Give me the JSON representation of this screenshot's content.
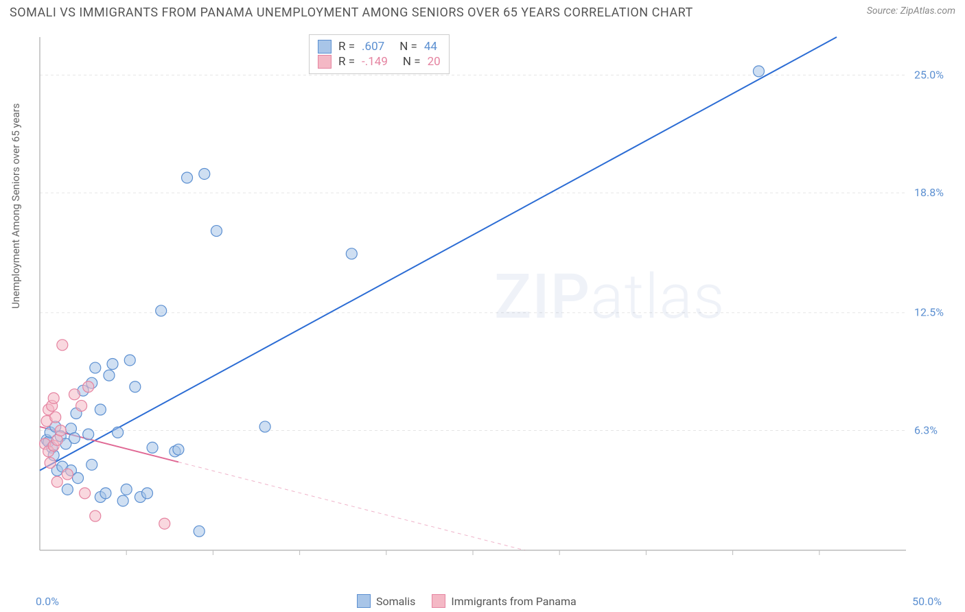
{
  "title": "SOMALI VS IMMIGRANTS FROM PANAMA UNEMPLOYMENT AMONG SENIORS OVER 65 YEARS CORRELATION CHART",
  "source": "Source: ZipAtlas.com",
  "watermark_a": "ZIP",
  "watermark_b": "atlas",
  "y_axis_label": "Unemployment Among Seniors over 65 years",
  "chart": {
    "type": "scatter",
    "xlim": [
      0,
      50
    ],
    "ylim": [
      0,
      27
    ],
    "y_ticks": [
      6.3,
      12.5,
      18.8,
      25.0
    ],
    "y_tick_labels": [
      "6.3%",
      "12.5%",
      "18.8%",
      "25.0%"
    ],
    "x_ticks": [
      5,
      10,
      15,
      20,
      25,
      30,
      35,
      40,
      45
    ],
    "x_origin_label": "0.0%",
    "x_end_label": "50.0%",
    "grid_color": "#e5e5e5",
    "axis_color": "#bbbbbb",
    "background_color": "#ffffff",
    "marker_radius": 8,
    "marker_opacity": 0.55,
    "line_width": 2,
    "series": [
      {
        "name": "Somalis",
        "color_fill": "#a8c5e8",
        "color_stroke": "#5b8fd1",
        "line_color": "#2b6cd4",
        "r": 0.607,
        "n": 44,
        "regression": {
          "x1": 0,
          "y1": 4.2,
          "x2": 46,
          "y2": 27,
          "dashed": false
        },
        "points": [
          [
            0.4,
            5.8
          ],
          [
            0.5,
            5.7
          ],
          [
            0.6,
            6.2
          ],
          [
            0.7,
            5.4
          ],
          [
            0.8,
            5.0
          ],
          [
            0.9,
            6.5
          ],
          [
            1.0,
            4.2
          ],
          [
            1.2,
            6.0
          ],
          [
            1.3,
            4.4
          ],
          [
            1.5,
            5.6
          ],
          [
            1.6,
            3.2
          ],
          [
            1.8,
            6.4
          ],
          [
            1.8,
            4.2
          ],
          [
            2.0,
            5.9
          ],
          [
            2.1,
            7.2
          ],
          [
            2.2,
            3.8
          ],
          [
            2.5,
            8.4
          ],
          [
            2.8,
            6.1
          ],
          [
            3.0,
            4.5
          ],
          [
            3.0,
            8.8
          ],
          [
            3.2,
            9.6
          ],
          [
            3.5,
            7.4
          ],
          [
            3.5,
            2.8
          ],
          [
            3.8,
            3.0
          ],
          [
            4.0,
            9.2
          ],
          [
            4.2,
            9.8
          ],
          [
            4.5,
            6.2
          ],
          [
            4.8,
            2.6
          ],
          [
            5.0,
            3.2
          ],
          [
            5.2,
            10.0
          ],
          [
            5.5,
            8.6
          ],
          [
            5.8,
            2.8
          ],
          [
            6.2,
            3.0
          ],
          [
            6.5,
            5.4
          ],
          [
            7.0,
            12.6
          ],
          [
            7.8,
            5.2
          ],
          [
            8.0,
            5.3
          ],
          [
            8.5,
            19.6
          ],
          [
            9.5,
            19.8
          ],
          [
            9.2,
            1.0
          ],
          [
            10.2,
            16.8
          ],
          [
            13.0,
            6.5
          ],
          [
            18.0,
            15.6
          ],
          [
            41.5,
            25.2
          ]
        ]
      },
      {
        "name": "Immigrants from Panama",
        "color_fill": "#f4b8c5",
        "color_stroke": "#e583a0",
        "line_color": "#e06894",
        "r": -0.149,
        "n": 20,
        "regression": {
          "x1": 0,
          "y1": 6.5,
          "x2": 28,
          "y2": 0,
          "dashed_from_x": 8
        },
        "points": [
          [
            0.3,
            5.6
          ],
          [
            0.4,
            6.8
          ],
          [
            0.5,
            5.2
          ],
          [
            0.5,
            7.4
          ],
          [
            0.6,
            4.6
          ],
          [
            0.7,
            7.6
          ],
          [
            0.8,
            5.5
          ],
          [
            0.8,
            8.0
          ],
          [
            0.9,
            7.0
          ],
          [
            1.0,
            5.8
          ],
          [
            1.0,
            3.6
          ],
          [
            1.2,
            6.3
          ],
          [
            1.3,
            10.8
          ],
          [
            1.6,
            4.0
          ],
          [
            2.0,
            8.2
          ],
          [
            2.4,
            7.6
          ],
          [
            2.6,
            3.0
          ],
          [
            2.8,
            8.6
          ],
          [
            3.2,
            1.8
          ],
          [
            7.2,
            1.4
          ]
        ]
      }
    ]
  },
  "legend_top": {
    "r_label": "R =",
    "n_label": "N ="
  },
  "legend_bottom": {
    "items": [
      "Somalis",
      "Immigrants from Panama"
    ]
  },
  "colors": {
    "title": "#555555",
    "source": "#888888",
    "tick_text_blue": "#5b8fd1",
    "tick_text_pink": "#d97aa0"
  }
}
